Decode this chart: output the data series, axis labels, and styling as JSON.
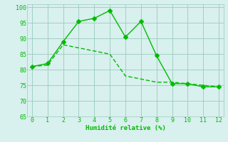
{
  "line1_x": [
    0,
    1,
    2,
    3,
    4,
    5,
    6,
    7,
    8,
    9,
    10,
    11,
    12
  ],
  "line1_y": [
    81,
    82,
    89,
    95.5,
    96.5,
    99,
    90.5,
    95.5,
    84.5,
    75.5,
    75.5,
    74.5,
    74.5
  ],
  "line2_x": [
    0,
    1,
    2,
    3,
    4,
    5,
    6,
    7,
    8,
    9,
    10,
    11,
    12
  ],
  "line2_y": [
    81,
    81.5,
    88,
    87,
    86,
    85,
    78,
    77,
    76,
    76,
    75.5,
    75,
    74.5
  ],
  "line_color": "#00bb00",
  "bg_color": "#d8f0ee",
  "grid_color": "#99ccbb",
  "xlabel": "Humidité relative (%)",
  "xlim": [
    -0.3,
    12.3
  ],
  "ylim": [
    65,
    101
  ],
  "yticks": [
    65,
    70,
    75,
    80,
    85,
    90,
    95,
    100
  ],
  "xticks": [
    0,
    1,
    2,
    3,
    4,
    5,
    6,
    7,
    8,
    9,
    10,
    11,
    12
  ],
  "marker_size": 3,
  "line_width": 1.0
}
